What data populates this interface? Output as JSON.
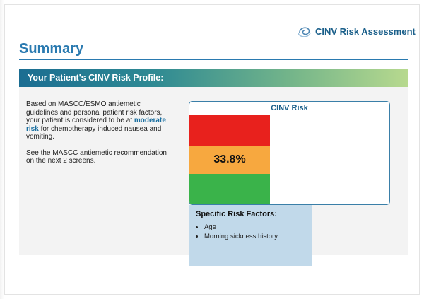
{
  "brand": {
    "name": "CINV Risk Assessment",
    "icon": "swirl-logo-icon"
  },
  "page": {
    "title": "Summary"
  },
  "section": {
    "title": "Your Patient's CINV Risk Profile:"
  },
  "summary": {
    "para1_pre": "Based on MASCC/ESMO antiemetic guidelines and personal patient risk factors, your patient is considered to be at",
    "risk_level": "moderate risk",
    "para1_post": "for chemotherapy induced nausea and vomiting.",
    "para2": "See the MASCC antiemetic recommendation on the next 2 screens."
  },
  "risk_gauge": {
    "title": "CINV Risk",
    "value": "33.8%",
    "bands": [
      "high",
      "moderate",
      "low"
    ],
    "colors": {
      "high": "#e8211d",
      "moderate": "#f7a83f",
      "low": "#3ab34a"
    }
  },
  "risk_factors": {
    "title": "Specific Risk Factors:",
    "items": [
      "Age",
      "Morning sickness history"
    ]
  }
}
